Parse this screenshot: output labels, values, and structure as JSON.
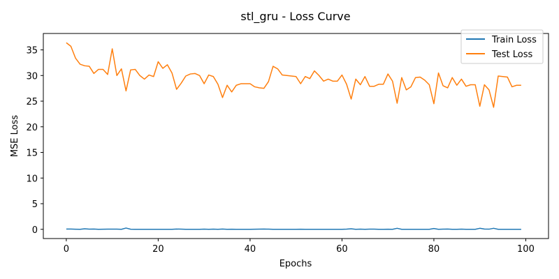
{
  "chart_data": {
    "type": "line",
    "title": "stl_gru - Loss Curve",
    "xlabel": "Epochs",
    "ylabel": "MSE Loss",
    "xlim": [
      -5,
      104.95
    ],
    "ylim": [
      -1.8,
      38.2
    ],
    "xticks": [
      0,
      20,
      40,
      60,
      80,
      100
    ],
    "yticks": [
      0,
      5,
      10,
      15,
      20,
      25,
      30,
      35
    ],
    "grid": false,
    "legend_position": "top-right",
    "x": [
      0,
      1,
      2,
      3,
      4,
      5,
      6,
      7,
      8,
      9,
      10,
      11,
      12,
      13,
      14,
      15,
      16,
      17,
      18,
      19,
      20,
      21,
      22,
      23,
      24,
      25,
      26,
      27,
      28,
      29,
      30,
      31,
      32,
      33,
      34,
      35,
      36,
      37,
      38,
      39,
      40,
      41,
      42,
      43,
      44,
      45,
      46,
      47,
      48,
      49,
      50,
      51,
      52,
      53,
      54,
      55,
      56,
      57,
      58,
      59,
      60,
      61,
      62,
      63,
      64,
      65,
      66,
      67,
      68,
      69,
      70,
      71,
      72,
      73,
      74,
      75,
      76,
      77,
      78,
      79,
      80,
      81,
      82,
      83,
      84,
      85,
      86,
      87,
      88,
      89,
      90,
      91,
      92,
      93,
      94,
      95,
      96,
      97,
      98,
      99
    ],
    "series": [
      {
        "name": "Train Loss",
        "color": "#1f77b4",
        "values": [
          0.05,
          0.05,
          0.02,
          0.0,
          0.1,
          0.03,
          0.05,
          0.0,
          0.02,
          0.03,
          0.03,
          0.03,
          0.0,
          0.25,
          0.02,
          0.0,
          0.0,
          0.0,
          0.0,
          0.0,
          0.0,
          0.0,
          0.0,
          0.0,
          0.05,
          0.03,
          0.0,
          0.0,
          0.0,
          0.0,
          0.03,
          0.0,
          0.03,
          0.0,
          0.05,
          0.0,
          0.02,
          0.0,
          0.0,
          0.0,
          0.0,
          0.02,
          0.03,
          0.05,
          0.03,
          0.0,
          0.0,
          0.0,
          0.0,
          0.0,
          0.0,
          0.02,
          0.0,
          0.0,
          0.0,
          0.0,
          0.0,
          0.0,
          0.0,
          0.0,
          0.0,
          0.03,
          0.1,
          0.0,
          0.03,
          0.0,
          0.03,
          0.03,
          0.0,
          0.0,
          0.02,
          0.0,
          0.2,
          0.0,
          0.0,
          0.0,
          0.0,
          0.0,
          0.0,
          0.0,
          0.15,
          0.0,
          0.03,
          0.05,
          0.0,
          0.0,
          0.03,
          0.0,
          0.0,
          0.0,
          0.2,
          0.05,
          0.03,
          0.2,
          0.0,
          0.0,
          0.0,
          0.0,
          0.0,
          0.0
        ]
      },
      {
        "name": "Test Loss",
        "color": "#ff7f0e",
        "values": [
          36.4,
          35.7,
          33.4,
          32.2,
          31.9,
          31.8,
          30.4,
          31.2,
          31.2,
          30.2,
          35.2,
          30.0,
          31.3,
          27.0,
          31.1,
          31.2,
          30.0,
          29.3,
          30.1,
          29.8,
          32.7,
          31.4,
          32.1,
          30.5,
          27.3,
          28.5,
          29.9,
          30.3,
          30.4,
          30.0,
          28.4,
          30.1,
          29.8,
          28.3,
          25.7,
          28.1,
          26.8,
          28.1,
          28.4,
          28.4,
          28.4,
          27.8,
          27.6,
          27.5,
          28.8,
          31.8,
          31.3,
          30.1,
          30.0,
          29.9,
          29.8,
          28.4,
          29.8,
          29.4,
          30.9,
          30.0,
          28.9,
          29.3,
          28.9,
          28.9,
          30.1,
          28.3,
          25.4,
          29.3,
          28.2,
          29.8,
          27.9,
          27.9,
          28.3,
          28.3,
          30.3,
          28.9,
          24.6,
          29.6,
          27.2,
          27.8,
          29.6,
          29.7,
          29.1,
          28.2,
          24.5,
          30.5,
          28.0,
          27.6,
          29.6,
          28.1,
          29.3,
          27.9,
          28.2,
          28.2,
          24.0,
          28.2,
          27.2,
          23.8,
          29.9,
          29.8,
          29.7,
          27.8,
          28.1,
          28.1
        ]
      }
    ]
  }
}
